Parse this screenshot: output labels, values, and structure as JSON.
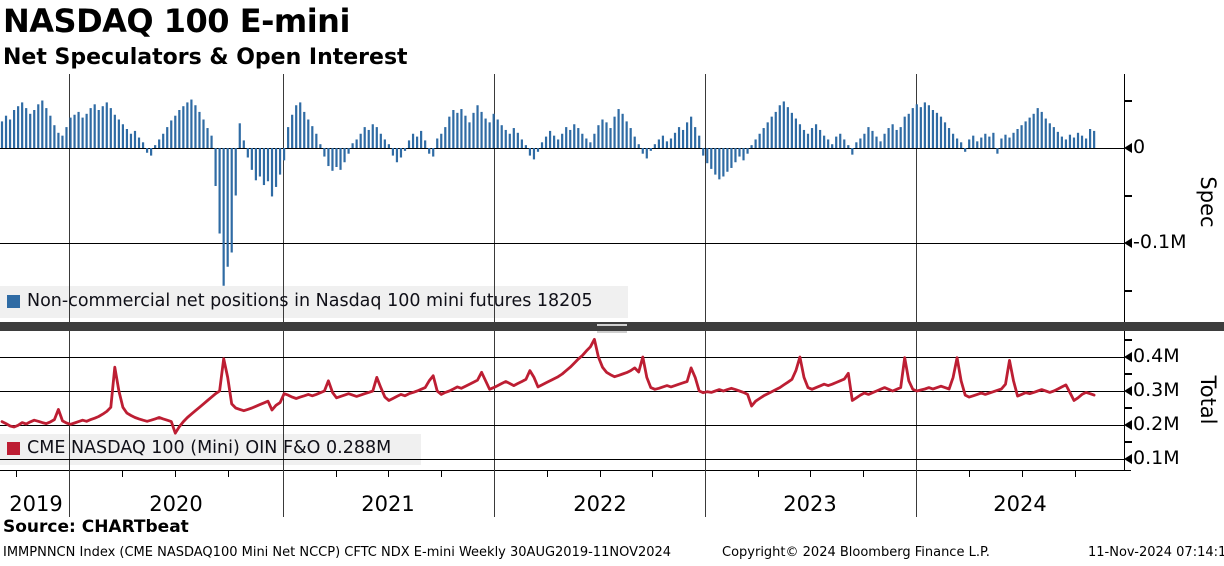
{
  "header": {
    "title": "NASDAQ 100 E-mini",
    "subtitle": "Net Speculators & Open Interest"
  },
  "top_panel": {
    "axis_title": "Spec",
    "legend": {
      "label": "Non-commercial net positions in Nasdaq 100 mini futures 18205",
      "swatch_color": "#2f6ba4"
    },
    "last_value_contracts": 18205,
    "ticks": [
      {
        "value": 0.05,
        "label": "",
        "major": false
      },
      {
        "value": 0.0,
        "label": "0",
        "major": true
      },
      {
        "value": -0.05,
        "label": "",
        "major": false
      },
      {
        "value": -0.1,
        "label": "-0.1M",
        "major": true
      },
      {
        "value": -0.15,
        "label": "",
        "major": false
      }
    ]
  },
  "bottom_panel": {
    "axis_title": "Total",
    "legend": {
      "label": "CME NASDAQ 100 (Mini) OIN F&O 0.288M",
      "swatch_color": "#bd1e33"
    },
    "last_value": "0.288M",
    "ticks": [
      {
        "value": 0.45,
        "label": "",
        "major": false
      },
      {
        "value": 0.4,
        "label": "0.4M",
        "major": true
      },
      {
        "value": 0.35,
        "label": "",
        "major": false
      },
      {
        "value": 0.3,
        "label": "0.3M",
        "major": true
      },
      {
        "value": 0.25,
        "label": "",
        "major": false
      },
      {
        "value": 0.2,
        "label": "0.2M",
        "major": true
      },
      {
        "value": 0.15,
        "label": "",
        "major": false
      },
      {
        "value": 0.1,
        "label": "0.1M",
        "major": true
      }
    ]
  },
  "x_axis": {
    "years": [
      {
        "label": "2019",
        "center": 36
      },
      {
        "label": "2020",
        "center": 176
      },
      {
        "label": "2021",
        "center": 388
      },
      {
        "label": "2022",
        "center": 600
      },
      {
        "label": "2023",
        "center": 810
      },
      {
        "label": "2024",
        "center": 1020
      }
    ],
    "year_line_x": [
      69,
      283,
      494,
      705,
      916
    ]
  },
  "footer": {
    "source": "Source: CHARTbeat",
    "meta_left": "IMMPNNCN Index (CME NASDAQ100 Mini Net NCCP) CFTC NDX E-mini  Weekly 30AUG2019-11NOV2024",
    "copyright": "Copyright© 2024 Bloomberg Finance L.P.",
    "timestamp": "11-Nov-2024 07:14:18"
  },
  "chart_data": [
    {
      "type": "bar",
      "title": "Non-commercial net positions in Nasdaq 100 mini futures",
      "x_description": "Weekly observations, 30AUG2019 (index 0) to 11NOV2024 (index 271)",
      "unit": "M contracts",
      "ylabel": "Spec",
      "ylim": [
        -0.17,
        0.072
      ],
      "grid": true,
      "legend_position": "bottom-left",
      "color": "#2f6ba4",
      "last_value": 0.018205,
      "values": [
        0.028,
        0.034,
        0.03,
        0.04,
        0.044,
        0.048,
        0.042,
        0.036,
        0.04,
        0.046,
        0.05,
        0.042,
        0.034,
        0.024,
        0.016,
        0.013,
        0.022,
        0.032,
        0.035,
        0.038,
        0.032,
        0.036,
        0.042,
        0.046,
        0.04,
        0.044,
        0.048,
        0.042,
        0.035,
        0.03,
        0.025,
        0.02,
        0.015,
        0.018,
        0.011,
        0.006,
        -0.005,
        -0.008,
        0.003,
        0.009,
        0.015,
        0.022,
        0.029,
        0.034,
        0.04,
        0.044,
        0.048,
        0.051,
        0.045,
        0.038,
        0.03,
        0.021,
        0.013,
        -0.04,
        -0.09,
        -0.145,
        -0.125,
        -0.11,
        -0.05,
        0.026,
        0.008,
        -0.01,
        -0.023,
        -0.034,
        -0.03,
        -0.039,
        -0.035,
        -0.051,
        -0.041,
        -0.028,
        -0.013,
        0.022,
        0.035,
        0.045,
        0.048,
        0.038,
        0.03,
        0.023,
        0.015,
        0.004,
        -0.009,
        -0.019,
        -0.024,
        -0.02,
        -0.023,
        -0.015,
        -0.006,
        0.005,
        0.009,
        0.015,
        0.022,
        0.019,
        0.025,
        0.022,
        0.015,
        0.009,
        0.004,
        -0.008,
        -0.015,
        -0.01,
        -0.003,
        0.008,
        0.015,
        0.012,
        0.018,
        0.008,
        -0.006,
        -0.009,
        0.01,
        0.015,
        0.022,
        0.033,
        0.04,
        0.037,
        0.041,
        0.034,
        0.027,
        0.037,
        0.045,
        0.038,
        0.031,
        0.027,
        0.036,
        0.03,
        0.024,
        0.019,
        0.015,
        0.021,
        0.016,
        0.009,
        0.003,
        -0.008,
        -0.012,
        -0.004,
        0.006,
        0.012,
        0.018,
        0.013,
        0.009,
        0.015,
        0.022,
        0.019,
        0.025,
        0.021,
        0.015,
        0.01,
        0.006,
        0.015,
        0.024,
        0.03,
        0.027,
        0.021,
        0.033,
        0.041,
        0.036,
        0.028,
        0.021,
        0.012,
        0.004,
        -0.006,
        -0.011,
        -0.003,
        0.004,
        0.009,
        0.013,
        0.007,
        0.01,
        0.016,
        0.022,
        0.019,
        0.027,
        0.033,
        0.022,
        0.013,
        -0.008,
        -0.016,
        -0.022,
        -0.028,
        -0.033,
        -0.03,
        -0.025,
        -0.021,
        -0.015,
        -0.009,
        -0.013,
        -0.006,
        0.003,
        0.009,
        0.015,
        0.021,
        0.027,
        0.033,
        0.038,
        0.045,
        0.049,
        0.043,
        0.037,
        0.031,
        0.025,
        0.019,
        0.015,
        0.021,
        0.025,
        0.019,
        0.013,
        0.009,
        0.004,
        0.012,
        0.015,
        0.009,
        0.003,
        -0.007,
        0.006,
        0.01,
        0.015,
        0.022,
        0.018,
        0.012,
        0.007,
        0.015,
        0.021,
        0.025,
        0.019,
        0.022,
        0.033,
        0.036,
        0.042,
        0.046,
        0.043,
        0.048,
        0.045,
        0.04,
        0.037,
        0.033,
        0.027,
        0.021,
        0.015,
        0.01,
        0.006,
        -0.004,
        0.009,
        0.013,
        0.007,
        0.011,
        0.015,
        0.012,
        0.016,
        -0.006,
        0.01,
        0.014,
        0.011,
        0.016,
        0.02,
        0.024,
        0.028,
        0.032,
        0.036,
        0.042,
        0.038,
        0.031,
        0.026,
        0.022,
        0.017,
        0.012,
        0.009,
        0.014,
        0.011,
        0.016,
        0.013,
        0.01,
        0.02,
        0.018
      ]
    },
    {
      "type": "line",
      "title": "CME NASDAQ 100 (Mini) OIN F&O",
      "x_description": "Weekly observations, 30AUG2019 (index 0) to 11NOV2024 (index 271)",
      "unit": "M contracts",
      "ylabel": "Total",
      "ylim": [
        0.07,
        0.47
      ],
      "grid": true,
      "legend_position": "bottom-left",
      "color": "#bd1e33",
      "last_value": 0.288,
      "values": [
        0.21,
        0.204,
        0.197,
        0.194,
        0.199,
        0.207,
        0.203,
        0.209,
        0.214,
        0.211,
        0.207,
        0.204,
        0.209,
        0.216,
        0.246,
        0.212,
        0.206,
        0.202,
        0.206,
        0.21,
        0.214,
        0.211,
        0.216,
        0.22,
        0.225,
        0.232,
        0.24,
        0.252,
        0.37,
        0.3,
        0.252,
        0.235,
        0.228,
        0.222,
        0.218,
        0.214,
        0.211,
        0.214,
        0.218,
        0.222,
        0.218,
        0.214,
        0.21,
        0.176,
        0.195,
        0.21,
        0.222,
        0.232,
        0.242,
        0.252,
        0.262,
        0.272,
        0.282,
        0.292,
        0.3,
        0.395,
        0.34,
        0.262,
        0.25,
        0.246,
        0.242,
        0.246,
        0.25,
        0.255,
        0.26,
        0.265,
        0.27,
        0.244,
        0.258,
        0.266,
        0.292,
        0.288,
        0.282,
        0.278,
        0.282,
        0.286,
        0.29,
        0.286,
        0.29,
        0.295,
        0.3,
        0.33,
        0.296,
        0.28,
        0.284,
        0.288,
        0.292,
        0.288,
        0.284,
        0.288,
        0.292,
        0.296,
        0.3,
        0.34,
        0.31,
        0.282,
        0.272,
        0.278,
        0.284,
        0.29,
        0.286,
        0.292,
        0.296,
        0.3,
        0.305,
        0.31,
        0.33,
        0.345,
        0.3,
        0.29,
        0.296,
        0.3,
        0.306,
        0.312,
        0.308,
        0.314,
        0.32,
        0.326,
        0.332,
        0.355,
        0.33,
        0.305,
        0.31,
        0.316,
        0.322,
        0.328,
        0.322,
        0.316,
        0.322,
        0.328,
        0.334,
        0.36,
        0.34,
        0.312,
        0.318,
        0.324,
        0.33,
        0.336,
        0.342,
        0.35,
        0.36,
        0.37,
        0.382,
        0.394,
        0.404,
        0.418,
        0.43,
        0.452,
        0.4,
        0.37,
        0.355,
        0.348,
        0.342,
        0.346,
        0.35,
        0.354,
        0.36,
        0.368,
        0.356,
        0.4,
        0.34,
        0.31,
        0.305,
        0.308,
        0.312,
        0.316,
        0.312,
        0.316,
        0.32,
        0.324,
        0.328,
        0.368,
        0.34,
        0.3,
        0.295,
        0.298,
        0.296,
        0.3,
        0.304,
        0.3,
        0.304,
        0.308,
        0.304,
        0.3,
        0.296,
        0.29,
        0.256,
        0.27,
        0.278,
        0.286,
        0.292,
        0.298,
        0.304,
        0.31,
        0.318,
        0.326,
        0.334,
        0.36,
        0.4,
        0.34,
        0.31,
        0.305,
        0.31,
        0.315,
        0.32,
        0.316,
        0.32,
        0.325,
        0.33,
        0.335,
        0.352,
        0.272,
        0.28,
        0.288,
        0.294,
        0.29,
        0.295,
        0.3,
        0.305,
        0.31,
        0.305,
        0.3,
        0.305,
        0.31,
        0.398,
        0.33,
        0.305,
        0.3,
        0.303,
        0.306,
        0.31,
        0.306,
        0.31,
        0.314,
        0.31,
        0.306,
        0.34,
        0.398,
        0.33,
        0.288,
        0.282,
        0.286,
        0.29,
        0.294,
        0.29,
        0.294,
        0.298,
        0.302,
        0.306,
        0.32,
        0.39,
        0.33,
        0.285,
        0.29,
        0.295,
        0.292,
        0.296,
        0.3,
        0.304,
        0.3,
        0.296,
        0.3,
        0.306,
        0.312,
        0.318,
        0.295,
        0.272,
        0.28,
        0.29,
        0.296,
        0.292,
        0.288
      ]
    }
  ]
}
